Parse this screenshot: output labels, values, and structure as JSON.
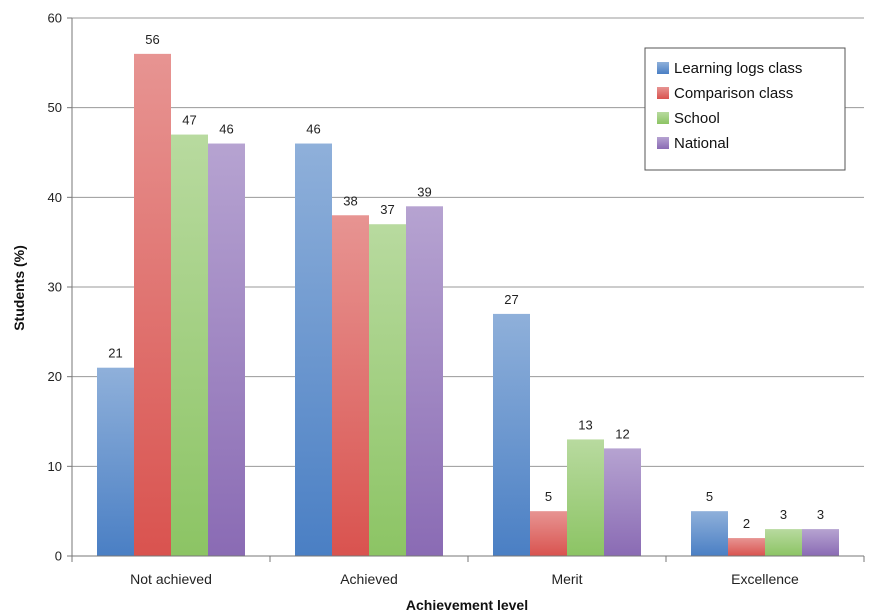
{
  "chart_data": {
    "type": "bar",
    "xlabel": "Achievement level",
    "ylabel": "Students (%)",
    "ylim": [
      0,
      60
    ],
    "yticks": [
      0,
      10,
      20,
      30,
      40,
      50,
      60
    ],
    "grid": true,
    "legend_position": "top-right",
    "categories": [
      "Not achieved",
      "Achieved",
      "Merit",
      "Excellence"
    ],
    "series": [
      {
        "name": "Learning logs class",
        "values": [
          21,
          46,
          27,
          5
        ],
        "color": "#4a7fc4"
      },
      {
        "name": "Comparison class",
        "values": [
          56,
          38,
          5,
          2
        ],
        "color": "#d9534f"
      },
      {
        "name": "School",
        "values": [
          47,
          37,
          13,
          3
        ],
        "color": "#8cc464"
      },
      {
        "name": "National",
        "values": [
          46,
          39,
          12,
          3
        ],
        "color": "#8a6bb4"
      }
    ]
  }
}
